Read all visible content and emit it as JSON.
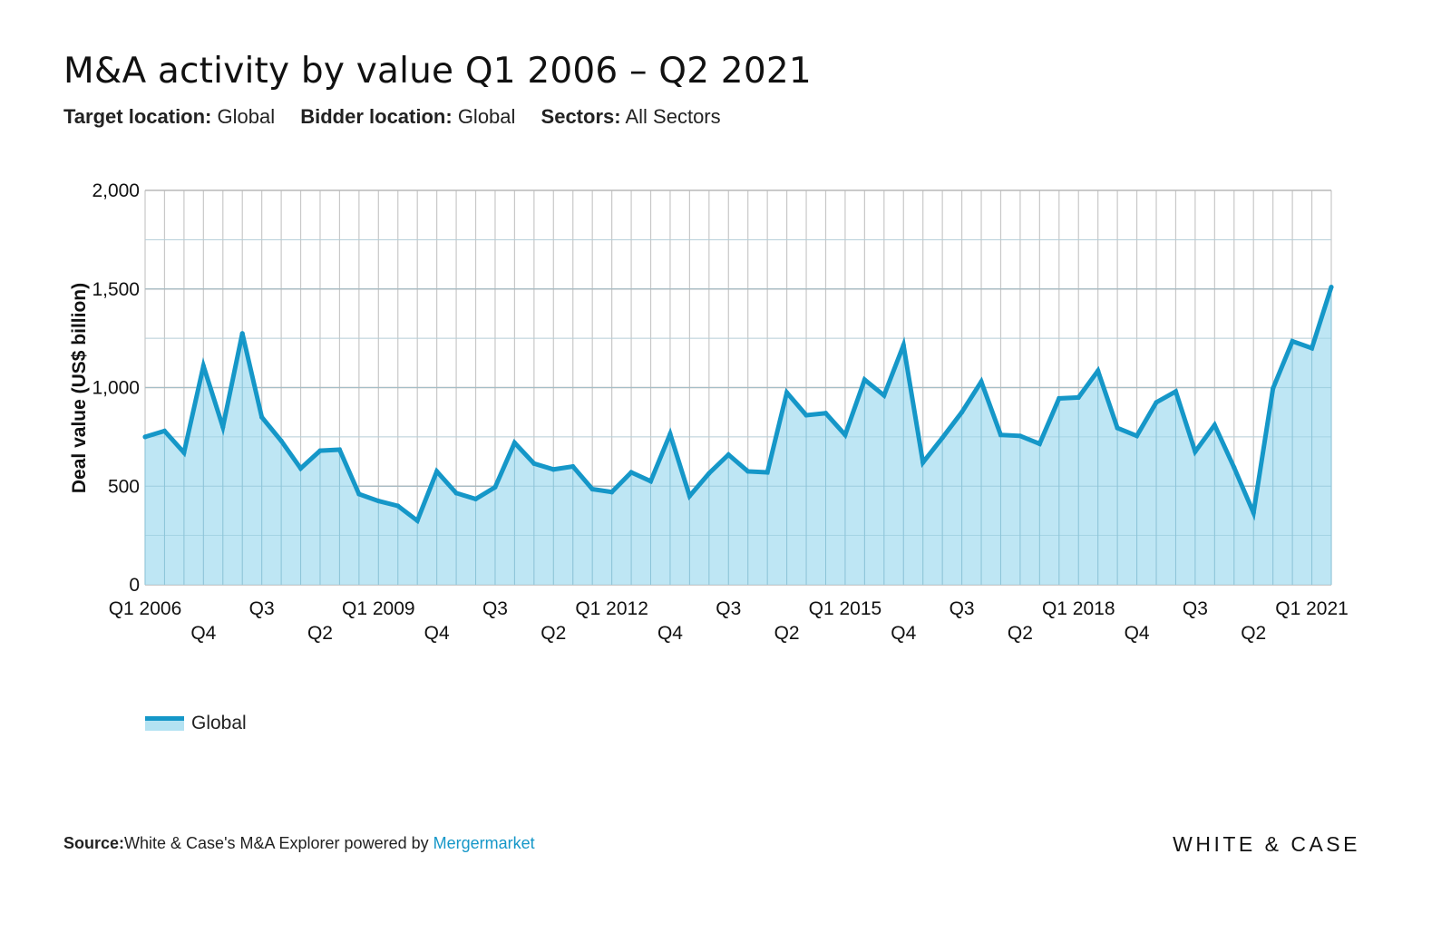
{
  "title": "M&A activity by value Q1 2006 – Q2 2021",
  "filters": [
    {
      "label": "Target location:",
      "value": "Global"
    },
    {
      "label": "Bidder location:",
      "value": "Global"
    },
    {
      "label": "Sectors:",
      "value": "All Sectors"
    }
  ],
  "source": {
    "label": "Source:",
    "text": "White & Case's M&A Explorer powered by ",
    "link": "Mergermarket"
  },
  "brand": "WHITE & CASE",
  "colors": {
    "line": "#1597c8",
    "area": "#b3e2f2",
    "grid": "#c8c8c8",
    "link": "#1597c8"
  },
  "chart_data": {
    "type": "area",
    "ylabel": "Deal value (US$ billion)",
    "xlabel": "",
    "ylim": [
      0,
      2000
    ],
    "yticks": [
      "0",
      "500",
      "1,000",
      "1,500",
      "2,000"
    ],
    "ytick_values": [
      0,
      500,
      1000,
      1500,
      2000
    ],
    "grid": true,
    "legend_position": "bottom-left",
    "x": [
      "Q1 2006",
      "Q2 2006",
      "Q3 2006",
      "Q4 2006",
      "Q1 2007",
      "Q2 2007",
      "Q3 2007",
      "Q4 2007",
      "Q1 2008",
      "Q2 2008",
      "Q3 2008",
      "Q4 2008",
      "Q1 2009",
      "Q2 2009",
      "Q3 2009",
      "Q4 2009",
      "Q1 2010",
      "Q2 2010",
      "Q3 2010",
      "Q4 2010",
      "Q1 2011",
      "Q2 2011",
      "Q3 2011",
      "Q4 2011",
      "Q1 2012",
      "Q2 2012",
      "Q3 2012",
      "Q4 2012",
      "Q1 2013",
      "Q2 2013",
      "Q3 2013",
      "Q4 2013",
      "Q1 2014",
      "Q2 2014",
      "Q3 2014",
      "Q4 2014",
      "Q1 2015",
      "Q2 2015",
      "Q3 2015",
      "Q4 2015",
      "Q1 2016",
      "Q2 2016",
      "Q3 2016",
      "Q4 2016",
      "Q1 2017",
      "Q2 2017",
      "Q3 2017",
      "Q4 2017",
      "Q1 2018",
      "Q2 2018",
      "Q3 2018",
      "Q4 2018",
      "Q1 2019",
      "Q2 2019",
      "Q3 2019",
      "Q4 2019",
      "Q1 2020",
      "Q2 2020",
      "Q3 2020",
      "Q4 2020",
      "Q1 2021",
      "Q2 2021"
    ],
    "xtick_labels": [
      {
        "index": 0,
        "text": "Q1 2006",
        "row": 1
      },
      {
        "index": 3,
        "text": "Q4",
        "row": 2
      },
      {
        "index": 6,
        "text": "Q3",
        "row": 1
      },
      {
        "index": 9,
        "text": "Q2",
        "row": 2
      },
      {
        "index": 12,
        "text": "Q1 2009",
        "row": 1
      },
      {
        "index": 15,
        "text": "Q4",
        "row": 2
      },
      {
        "index": 18,
        "text": "Q3",
        "row": 1
      },
      {
        "index": 21,
        "text": "Q2",
        "row": 2
      },
      {
        "index": 24,
        "text": "Q1 2012",
        "row": 1
      },
      {
        "index": 27,
        "text": "Q4",
        "row": 2
      },
      {
        "index": 30,
        "text": "Q3",
        "row": 1
      },
      {
        "index": 33,
        "text": "Q2",
        "row": 2
      },
      {
        "index": 36,
        "text": "Q1 2015",
        "row": 1
      },
      {
        "index": 39,
        "text": "Q4",
        "row": 2
      },
      {
        "index": 42,
        "text": "Q3",
        "row": 1
      },
      {
        "index": 45,
        "text": "Q2",
        "row": 2
      },
      {
        "index": 48,
        "text": "Q1 2018",
        "row": 1
      },
      {
        "index": 51,
        "text": "Q4",
        "row": 2
      },
      {
        "index": 54,
        "text": "Q3",
        "row": 1
      },
      {
        "index": 57,
        "text": "Q2",
        "row": 2
      },
      {
        "index": 60,
        "text": "Q1 2021",
        "row": 1
      }
    ],
    "series": [
      {
        "name": "Global",
        "values": [
          750,
          780,
          670,
          1110,
          800,
          1275,
          850,
          730,
          590,
          680,
          685,
          460,
          425,
          400,
          325,
          575,
          465,
          435,
          495,
          720,
          615,
          585,
          600,
          485,
          470,
          570,
          525,
          765,
          450,
          565,
          660,
          575,
          570,
          975,
          860,
          870,
          760,
          1040,
          960,
          1215,
          620,
          745,
          875,
          1030,
          760,
          755,
          715,
          945,
          950,
          1085,
          795,
          755,
          925,
          980,
          675,
          810,
          595,
          365,
          995,
          1235,
          1200,
          1510
        ]
      }
    ]
  }
}
